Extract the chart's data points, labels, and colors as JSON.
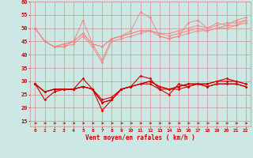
{
  "title": "",
  "xlabel": "Vent moyen/en rafales ( km/h )",
  "bg_color": "#cde8e4",
  "grid_color": "#d09090",
  "rafales_line1": [
    50,
    45,
    43,
    43,
    45,
    53,
    44,
    38,
    46,
    47,
    49,
    56,
    54,
    47,
    46,
    47,
    52,
    53,
    50,
    52,
    51,
    53,
    54
  ],
  "rafales_line2": [
    50,
    45,
    43,
    44,
    45,
    48,
    44,
    43,
    46,
    47,
    48,
    49,
    49,
    48,
    48,
    49,
    50,
    51,
    50,
    51,
    52,
    52,
    53
  ],
  "rafales_line3": [
    50,
    45,
    43,
    44,
    45,
    48,
    44,
    43,
    46,
    47,
    48,
    49,
    49,
    48,
    47,
    48,
    49,
    50,
    49,
    50,
    51,
    51,
    52
  ],
  "rafales_line4": [
    50,
    45,
    43,
    43,
    44,
    47,
    43,
    37,
    45,
    46,
    47,
    48,
    49,
    47,
    46,
    47,
    48,
    49,
    49,
    50,
    50,
    51,
    53
  ],
  "vent_line1": [
    29,
    23,
    26,
    27,
    27,
    31,
    27,
    23,
    24,
    27,
    28,
    32,
    31,
    27,
    25,
    29,
    28,
    29,
    29,
    30,
    31,
    30,
    29
  ],
  "vent_line2": [
    29,
    26,
    27,
    27,
    27,
    28,
    27,
    19,
    23,
    27,
    28,
    29,
    30,
    28,
    27,
    28,
    29,
    29,
    29,
    30,
    30,
    30,
    29
  ],
  "vent_line3": [
    29,
    26,
    27,
    27,
    27,
    28,
    27,
    22,
    23,
    27,
    28,
    29,
    30,
    28,
    27,
    28,
    29,
    29,
    28,
    29,
    29,
    29,
    28
  ],
  "vent_line4": [
    29,
    26,
    27,
    27,
    27,
    28,
    27,
    22,
    23,
    27,
    28,
    29,
    29,
    27,
    27,
    27,
    28,
    29,
    28,
    29,
    29,
    29,
    28
  ],
  "ylim": [
    13,
    60
  ],
  "yticks": [
    15,
    20,
    25,
    30,
    35,
    40,
    45,
    50,
    55,
    60
  ],
  "color_rafales": "#f08888",
  "color_vent_dark": "#cc0000",
  "arrow_color": "#cc0000"
}
